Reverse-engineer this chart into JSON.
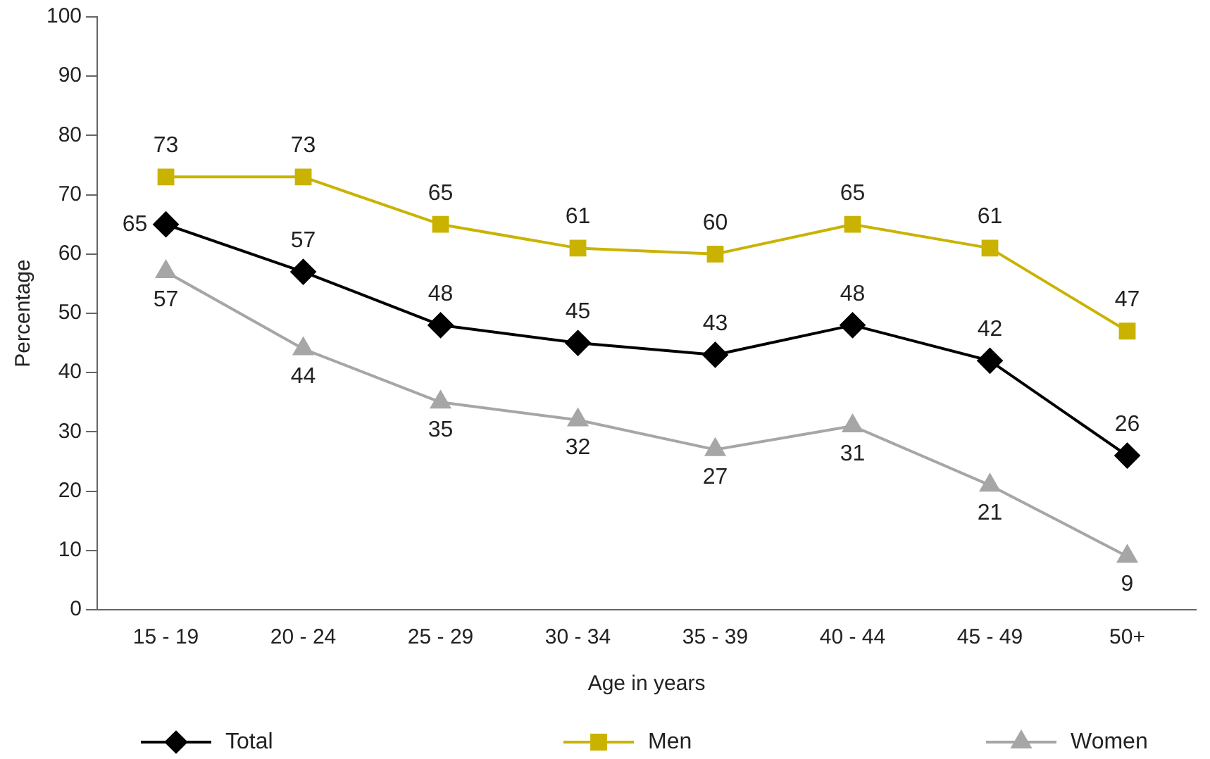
{
  "chart_data": {
    "type": "line",
    "xlabel": "Age in years",
    "ylabel": "Percentage",
    "categories": [
      "15 - 19",
      "20 - 24",
      "25 - 29",
      "30 - 34",
      "35 - 39",
      "40 - 44",
      "45 - 49",
      "50+"
    ],
    "series": [
      {
        "name": "Total",
        "color": "#000000",
        "marker": "diamond",
        "values": [
          65,
          57,
          48,
          45,
          43,
          48,
          42,
          26
        ]
      },
      {
        "name": "Men",
        "color": "#c9b300",
        "marker": "square",
        "values": [
          73,
          73,
          65,
          61,
          60,
          65,
          61,
          47
        ]
      },
      {
        "name": "Women",
        "color": "#a6a6a6",
        "marker": "triangle",
        "values": [
          57,
          44,
          35,
          32,
          27,
          31,
          21,
          9
        ]
      }
    ],
    "ylim": [
      0,
      100
    ],
    "yticks": [
      0,
      10,
      20,
      30,
      40,
      50,
      60,
      70,
      80,
      90,
      100
    ],
    "grid": false,
    "legend": "bottom",
    "data_labels": true,
    "line_style": "solid"
  }
}
